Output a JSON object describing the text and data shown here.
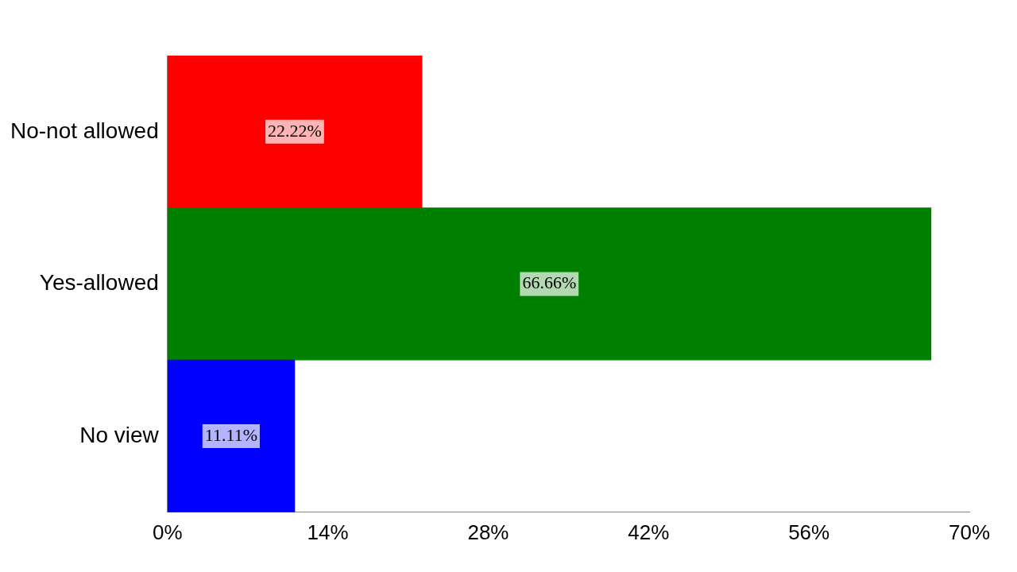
{
  "chart_data": {
    "type": "bar",
    "orientation": "horizontal",
    "categories": [
      "No-not allowed",
      "Yes-allowed",
      "No view"
    ],
    "values": [
      22.22,
      66.66,
      11.11
    ],
    "colors": [
      "#ff0000",
      "#008000",
      "#0000ff"
    ],
    "value_labels": [
      "22.22%",
      "66.66%",
      "11.11%"
    ],
    "xlim": [
      0,
      70
    ],
    "xticks": [
      {
        "value": 0,
        "label": "0%"
      },
      {
        "value": 14,
        "label": "14%"
      },
      {
        "value": 28,
        "label": "28%"
      },
      {
        "value": 42,
        "label": "42%"
      },
      {
        "value": 56,
        "label": "56%"
      },
      {
        "value": 70,
        "label": "70%"
      }
    ],
    "grid": false,
    "legend": false
  }
}
